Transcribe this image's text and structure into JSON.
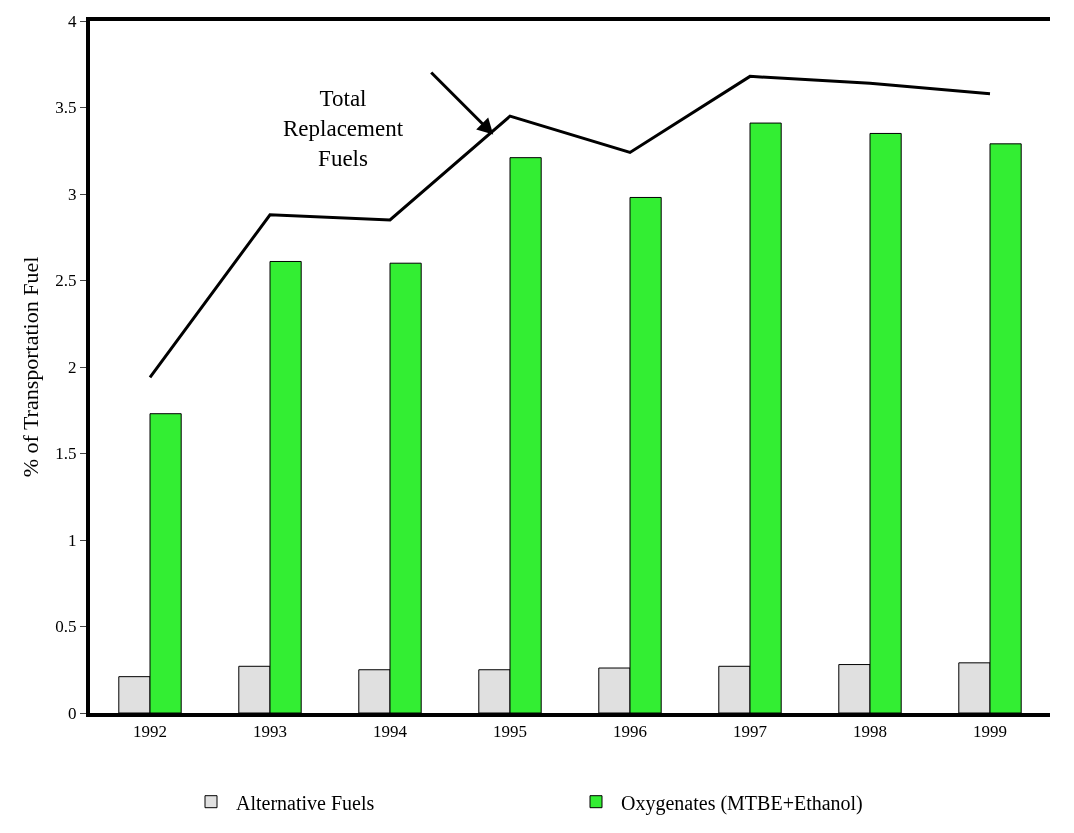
{
  "chart_data": {
    "type": "bar",
    "ylabel": "% of Transportation Fuel",
    "categories": [
      "1992",
      "1993",
      "1994",
      "1995",
      "1996",
      "1997",
      "1998",
      "1999"
    ],
    "series": [
      {
        "name": "Alternative Fuels",
        "color": "#e0e0e0",
        "values": [
          0.21,
          0.27,
          0.25,
          0.25,
          0.26,
          0.27,
          0.28,
          0.29
        ]
      },
      {
        "name": "Oxygenates (MTBE+Ethanol)",
        "color": "#33ee33",
        "values": [
          1.73,
          2.61,
          2.6,
          3.21,
          2.98,
          3.41,
          3.35,
          3.29
        ]
      },
      {
        "type": "line",
        "color": "#000000",
        "values": [
          1.94,
          2.88,
          2.85,
          3.45,
          3.24,
          3.68,
          3.64,
          3.58
        ]
      }
    ],
    "annotations": [
      "Total\nReplacement\nFuels"
    ],
    "ylim": [
      0,
      4
    ],
    "yticks": [
      0,
      0.5,
      1,
      1.5,
      2,
      2.5,
      3,
      3.5,
      4
    ],
    "grid": false,
    "legend": "bottom",
    "marker": "none"
  }
}
